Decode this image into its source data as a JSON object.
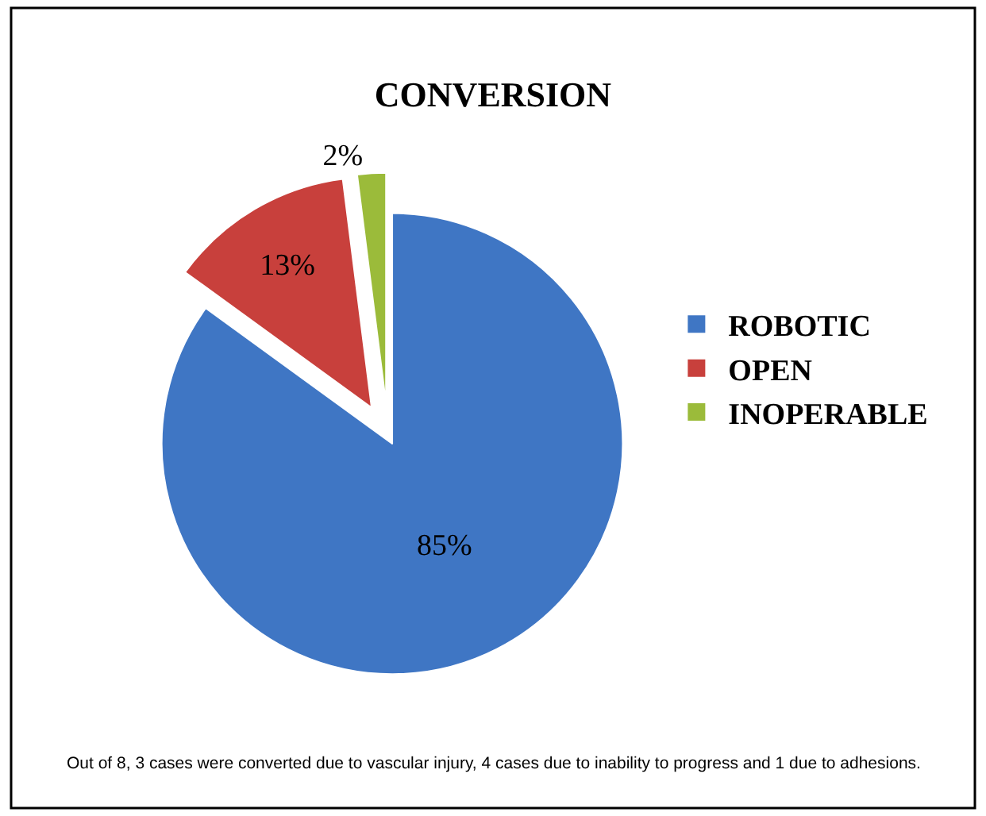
{
  "chart_data": {
    "type": "pie",
    "title": "CONVERSION",
    "categories": [
      "ROBOTIC",
      "OPEN",
      "INOPERABLE"
    ],
    "values": [
      85,
      13,
      2
    ],
    "colors": [
      "#3f76c4",
      "#c8403c",
      "#9bbb3a"
    ],
    "value_labels": [
      "85%",
      "13%",
      "2%"
    ],
    "legend": "right",
    "annotations": [
      "Out of 8, 3 cases were converted due to vascular injury, 4 cases due to inability to progress and 1 due to adhesions."
    ]
  }
}
